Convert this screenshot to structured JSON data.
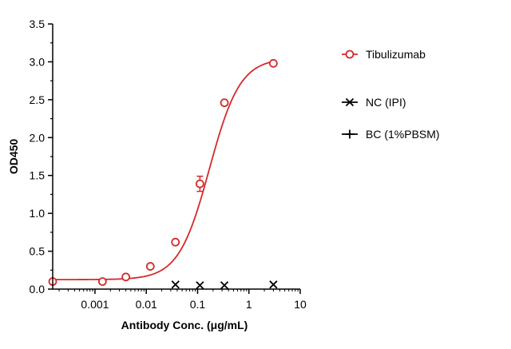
{
  "chart_data": {
    "type": "scatter",
    "title": "",
    "xlabel": "Antibody Conc. (μg/mL)",
    "ylabel": "OD450",
    "x_scale": "log",
    "xlim": [
      0.00015,
      10
    ],
    "ylim": [
      0,
      3.5
    ],
    "x_ticks": [
      {
        "value": 0.001,
        "label": "0.001"
      },
      {
        "value": 0.01,
        "label": "0.01"
      },
      {
        "value": 0.1,
        "label": "0.1"
      },
      {
        "value": 1,
        "label": "1"
      },
      {
        "value": 10,
        "label": "10"
      }
    ],
    "y_ticks": [
      {
        "value": 0.0,
        "label": "0.0"
      },
      {
        "value": 0.5,
        "label": "0.5"
      },
      {
        "value": 1.0,
        "label": "1.0"
      },
      {
        "value": 1.5,
        "label": "1.5"
      },
      {
        "value": 2.0,
        "label": "2.0"
      },
      {
        "value": 2.5,
        "label": "2.5"
      },
      {
        "value": 3.0,
        "label": "3.0"
      },
      {
        "value": 3.5,
        "label": "3.5"
      }
    ],
    "grid": false,
    "legend_position": "right",
    "series": [
      {
        "name": "Tibulizumab",
        "color": "#d42a2a",
        "marker": "open-circle",
        "fit_curve": true,
        "points": [
          {
            "x": 0.00015,
            "y": 0.1
          },
          {
            "x": 0.0014,
            "y": 0.1
          },
          {
            "x": 0.004,
            "y": 0.16
          },
          {
            "x": 0.012,
            "y": 0.3
          },
          {
            "x": 0.037,
            "y": 0.62
          },
          {
            "x": 0.111,
            "y": 1.39,
            "err": 0.1
          },
          {
            "x": 0.333,
            "y": 2.46
          },
          {
            "x": 3.0,
            "y": 2.98
          }
        ]
      },
      {
        "name": "NC (IPI)",
        "color": "#000000",
        "marker": "x",
        "points": [
          {
            "x": 0.037,
            "y": 0.06
          },
          {
            "x": 0.111,
            "y": 0.05
          },
          {
            "x": 0.333,
            "y": 0.05
          },
          {
            "x": 3.0,
            "y": 0.06
          }
        ]
      },
      {
        "name": "BC (1%PBSM)",
        "color": "#000000",
        "marker": "plus",
        "points": []
      }
    ]
  }
}
